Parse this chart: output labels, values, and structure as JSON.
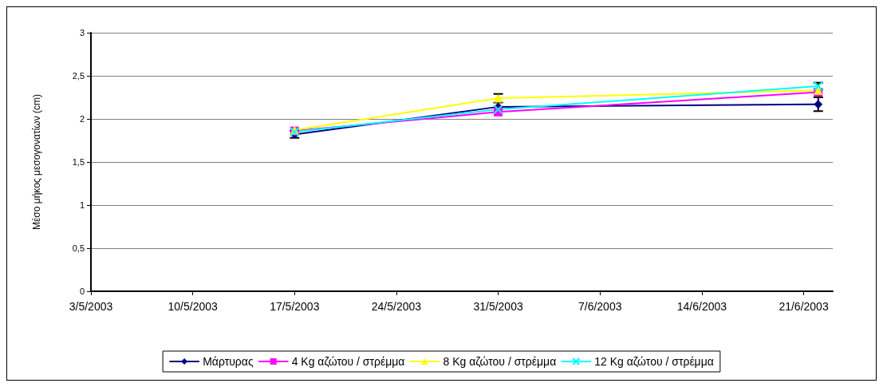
{
  "chart_data": {
    "type": "line",
    "ylabel": "Μέσο μήκος μεσογονατίων (cm)",
    "x": [
      "2003-05-17",
      "2003-05-31",
      "2003-06-22"
    ],
    "series": [
      {
        "name": "Μάρτυρας",
        "color": "#000080",
        "marker": "diamond",
        "values": [
          1.82,
          2.14,
          2.17
        ],
        "errors": [
          0.04,
          null,
          0.08
        ]
      },
      {
        "name": "4 Kg αζώτου / στρέμμα",
        "color": "#ff00ff",
        "marker": "square",
        "values": [
          1.86,
          2.08,
          2.31
        ]
      },
      {
        "name": "8 Kg αζώτου / στρέμμα",
        "color": "#ffff00",
        "marker": "triangle",
        "values": [
          1.87,
          2.24,
          2.33
        ],
        "errors": [
          null,
          0.05,
          null
        ]
      },
      {
        "name": "12 Kg αζώτου / στρέμμα",
        "color": "#00ffff",
        "marker": "cross",
        "values": [
          1.85,
          2.11,
          2.38
        ],
        "errors": [
          null,
          null,
          0.04
        ]
      }
    ],
    "xlim": [
      "2003-05-03",
      "2003-06-23"
    ],
    "xticks": [
      {
        "value": "2003-05-03",
        "label": "3/5/2003"
      },
      {
        "value": "2003-05-10",
        "label": "10/5/2003"
      },
      {
        "value": "2003-05-17",
        "label": "17/5/2003"
      },
      {
        "value": "2003-05-24",
        "label": "24/5/2003"
      },
      {
        "value": "2003-05-31",
        "label": "31/5/2003"
      },
      {
        "value": "2003-06-07",
        "label": "7/6/2003"
      },
      {
        "value": "2003-06-14",
        "label": "14/6/2003"
      },
      {
        "value": "2003-06-21",
        "label": "21/6/2003"
      }
    ],
    "ylim": [
      0,
      3
    ],
    "yticks": [
      0,
      {
        "value": 0.5,
        "label": "0,5"
      },
      1,
      {
        "value": 1.5,
        "label": "1,5"
      },
      2,
      {
        "value": 2.5,
        "label": "2,5"
      },
      3
    ],
    "grid": "y",
    "legend": "bottom",
    "line_style": "solid"
  }
}
